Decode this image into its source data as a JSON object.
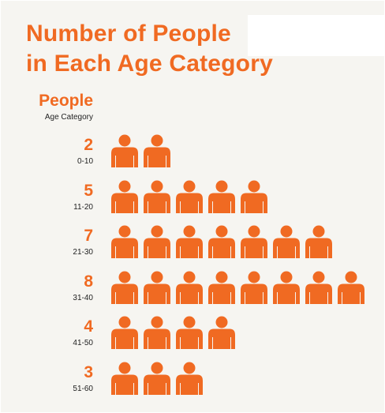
{
  "title_line1": "Number of People",
  "title_line2": "in Each Age Category",
  "y_header": "People",
  "y_subheader": "Age Category",
  "colors": {
    "accent": "#f06a22",
    "background": "#f6f5f1",
    "label": "#222222"
  },
  "icon": "person-icon",
  "chart_data": {
    "type": "bar",
    "title": "Number of People in Each Age Category",
    "xlabel": "",
    "ylabel": "Age Category",
    "value_label": "People",
    "categories": [
      "0-10",
      "11-20",
      "21-30",
      "31-40",
      "41-50",
      "51-60"
    ],
    "values": [
      2,
      5,
      7,
      8,
      4,
      3
    ],
    "grid": false,
    "legend": "none"
  }
}
